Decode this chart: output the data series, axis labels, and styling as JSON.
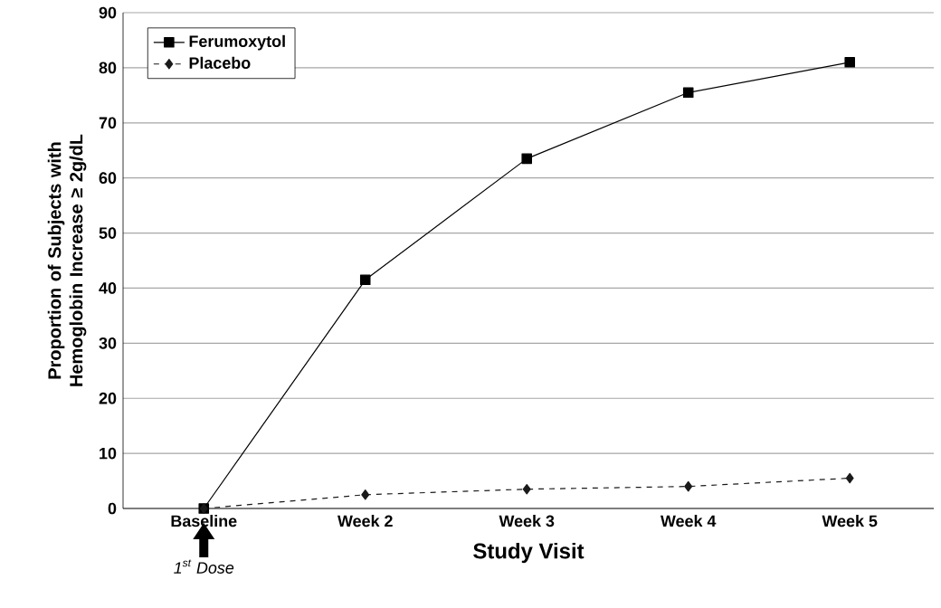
{
  "chart_data": {
    "type": "line",
    "xlabel": "Study Visit",
    "ylabel": "Proportion of Subjects with Hemoglobin Increase ≥ 2g/dL",
    "categories": [
      "Baseline",
      "Week 2",
      "Week 3",
      "Week 4",
      "Week 5"
    ],
    "series": [
      {
        "name": "Ferumoxytol",
        "color": "#000000",
        "marker": "square",
        "line_style": "solid",
        "values": [
          0,
          41.5,
          63.5,
          75.5,
          81
        ]
      },
      {
        "name": "Placebo",
        "color": "#1a1a1a",
        "marker": "diamond",
        "line_style": "dashed",
        "values": [
          0,
          2.5,
          3.5,
          4,
          5.5
        ]
      }
    ],
    "ylim": [
      0,
      90
    ],
    "yticks": [
      0,
      10,
      20,
      30,
      40,
      50,
      60,
      70,
      80,
      90
    ],
    "grid": "y",
    "legend": "top left",
    "annotations": [
      "1$^{st}$ Dose"
    ]
  }
}
